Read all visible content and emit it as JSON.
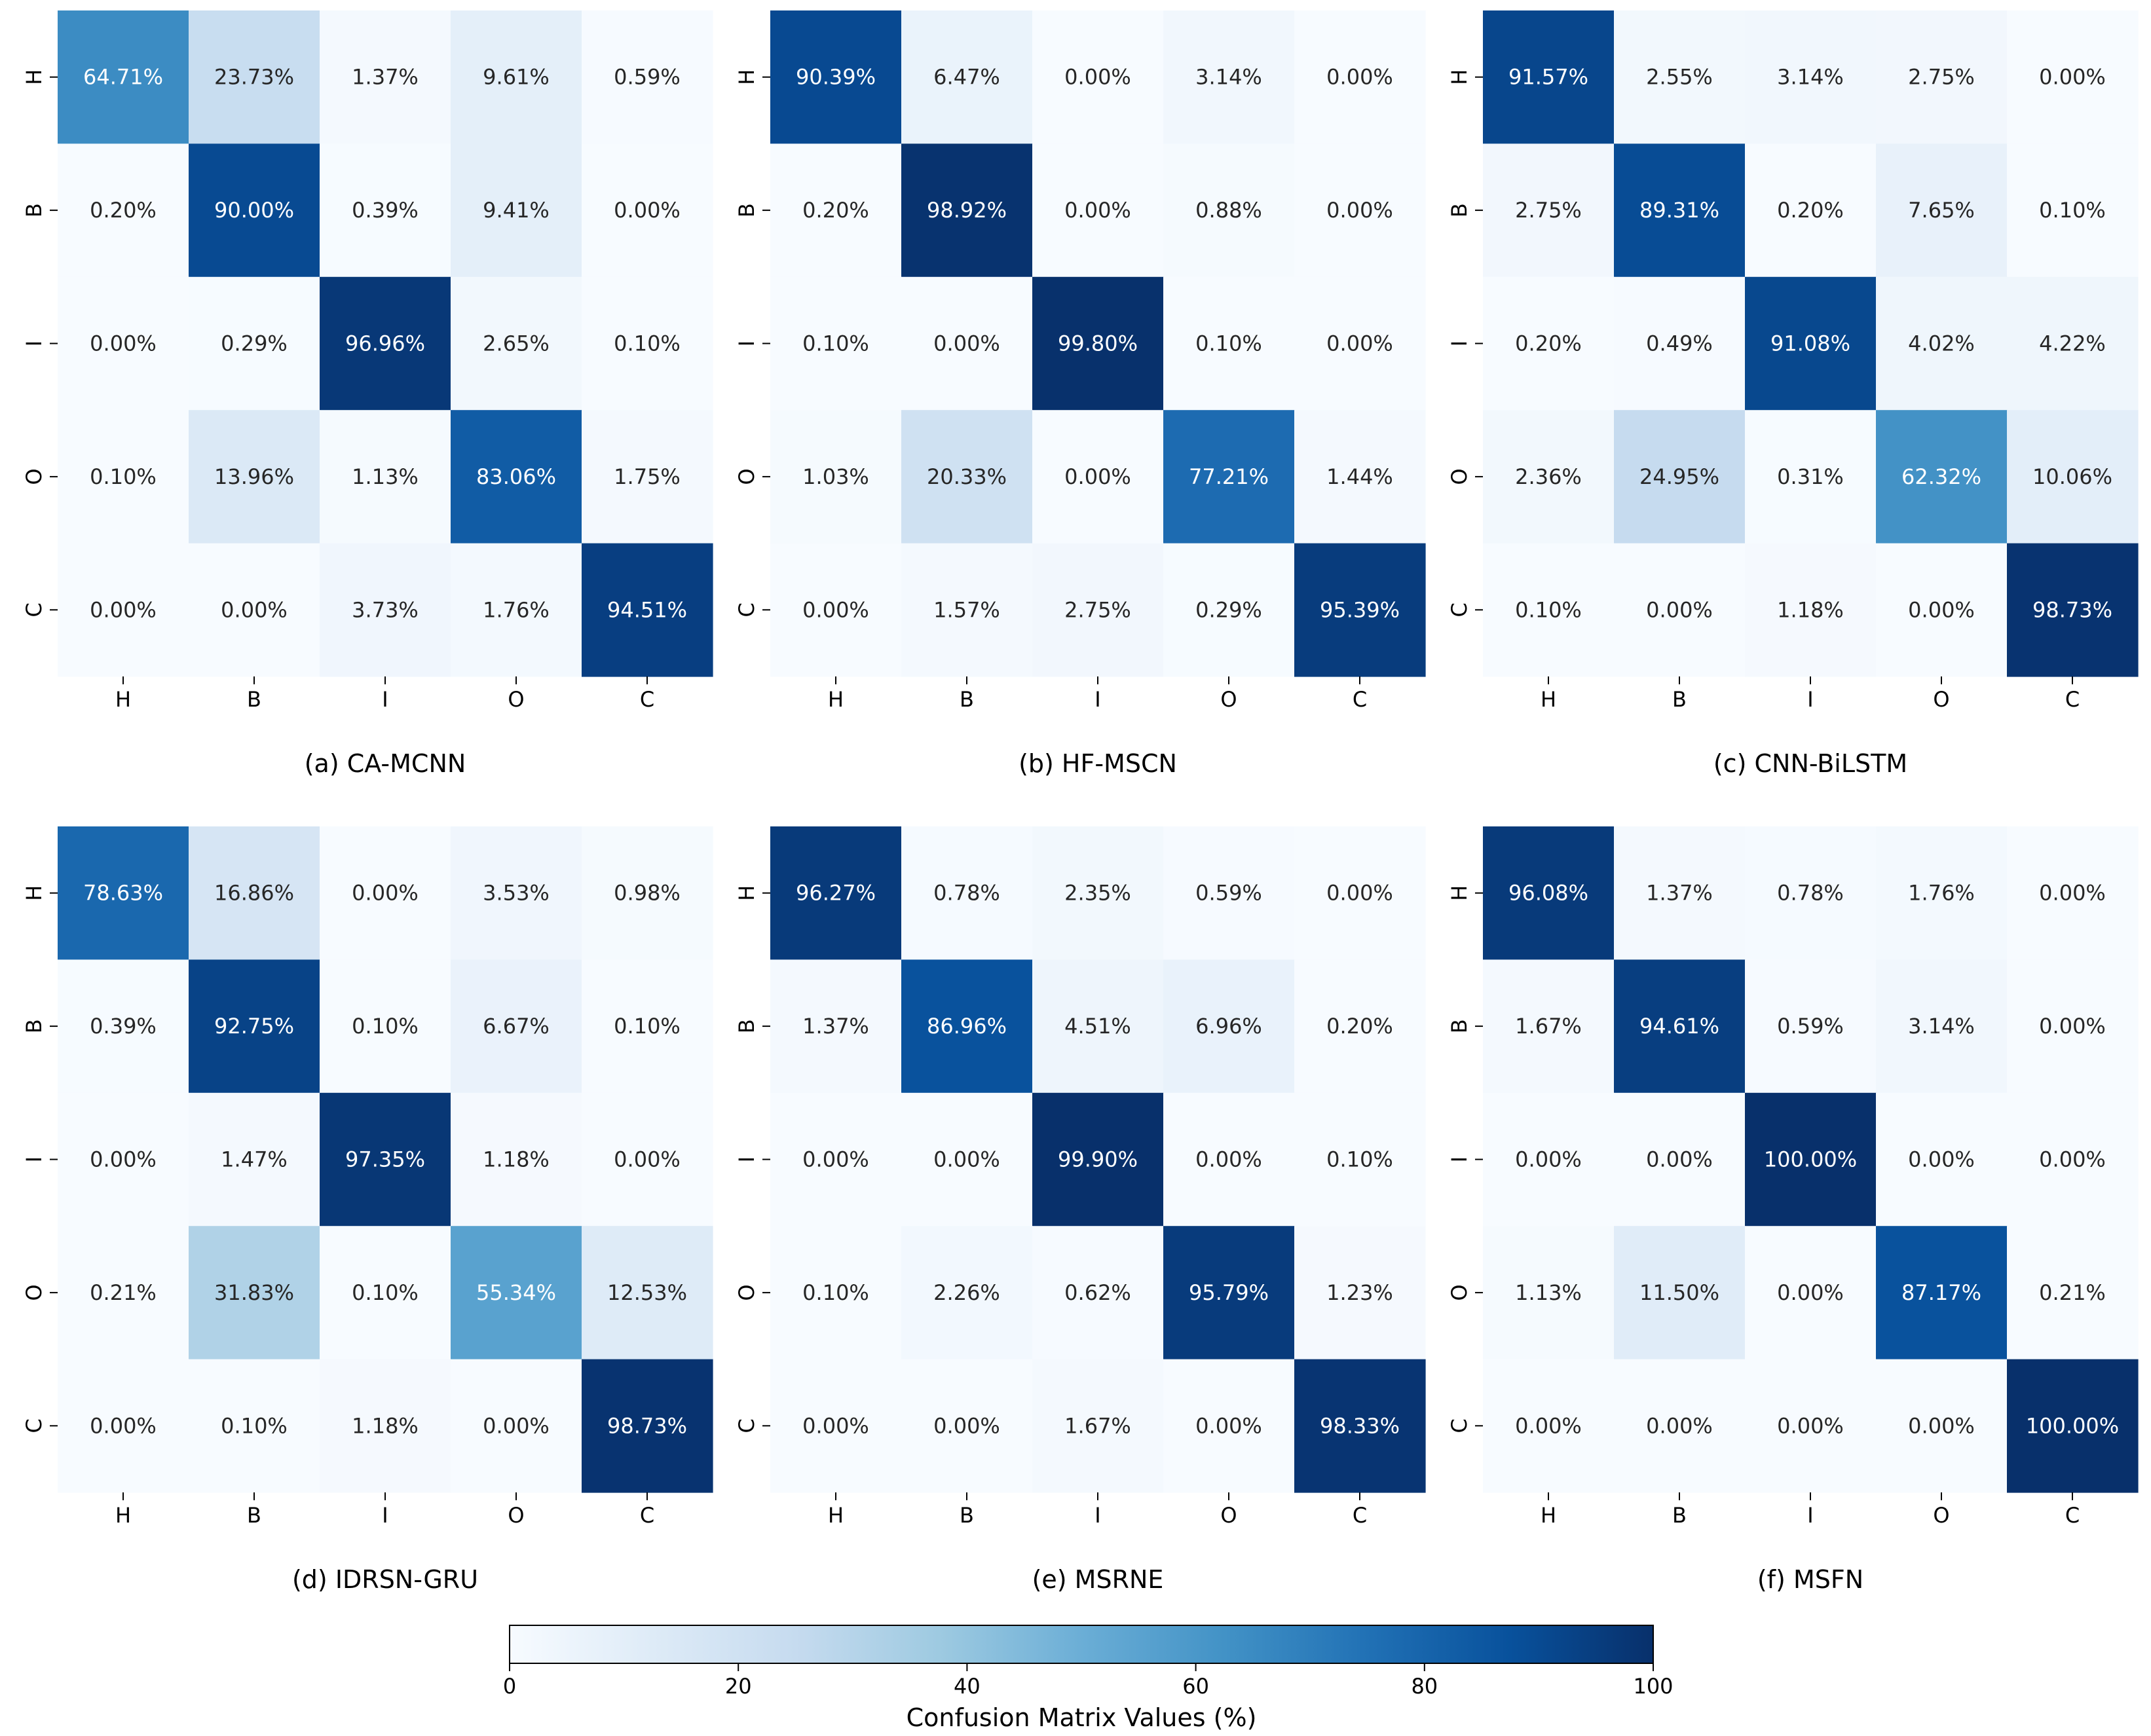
{
  "chart_data": [
    {
      "type": "heatmap",
      "caption": "(a) CA-MCNN",
      "row_labels": [
        "H",
        "B",
        "I",
        "O",
        "C"
      ],
      "col_labels": [
        "H",
        "B",
        "I",
        "O",
        "C"
      ],
      "values": [
        [
          64.71,
          23.73,
          1.37,
          9.61,
          0.59
        ],
        [
          0.2,
          90.0,
          0.39,
          9.41,
          0.0
        ],
        [
          0.0,
          0.29,
          96.96,
          2.65,
          0.1
        ],
        [
          0.1,
          13.96,
          1.13,
          83.06,
          1.75
        ],
        [
          0.0,
          0.0,
          3.73,
          1.76,
          94.51
        ]
      ],
      "cell_labels": [
        [
          "64.71%",
          "23.73%",
          "1.37%",
          "9.61%",
          "0.59%"
        ],
        [
          "0.20%",
          "90.00%",
          "0.39%",
          "9.41%",
          "0.00%"
        ],
        [
          "0.00%",
          "0.29%",
          "96.96%",
          "2.65%",
          "0.10%"
        ],
        [
          "0.10%",
          "13.96%",
          "1.13%",
          "83.06%",
          "1.75%"
        ],
        [
          "0.00%",
          "0.00%",
          "3.73%",
          "1.76%",
          "94.51%"
        ]
      ]
    },
    {
      "type": "heatmap",
      "caption": "(b) HF-MSCN",
      "row_labels": [
        "H",
        "B",
        "I",
        "O",
        "C"
      ],
      "col_labels": [
        "H",
        "B",
        "I",
        "O",
        "C"
      ],
      "values": [
        [
          90.39,
          6.47,
          0.0,
          3.14,
          0.0
        ],
        [
          0.2,
          98.92,
          0.0,
          0.88,
          0.0
        ],
        [
          0.1,
          0.0,
          99.8,
          0.1,
          0.0
        ],
        [
          1.03,
          20.33,
          0.0,
          77.21,
          1.44
        ],
        [
          0.0,
          1.57,
          2.75,
          0.29,
          95.39
        ]
      ],
      "cell_labels": [
        [
          "90.39%",
          "6.47%",
          "0.00%",
          "3.14%",
          "0.00%"
        ],
        [
          "0.20%",
          "98.92%",
          "0.00%",
          "0.88%",
          "0.00%"
        ],
        [
          "0.10%",
          "0.00%",
          "99.80%",
          "0.10%",
          "0.00%"
        ],
        [
          "1.03%",
          "20.33%",
          "0.00%",
          "77.21%",
          "1.44%"
        ],
        [
          "0.00%",
          "1.57%",
          "2.75%",
          "0.29%",
          "95.39%"
        ]
      ]
    },
    {
      "type": "heatmap",
      "caption": "(c) CNN-BiLSTM",
      "row_labels": [
        "H",
        "B",
        "I",
        "O",
        "C"
      ],
      "col_labels": [
        "H",
        "B",
        "I",
        "O",
        "C"
      ],
      "values": [
        [
          91.57,
          2.55,
          3.14,
          2.75,
          0.0
        ],
        [
          2.75,
          89.31,
          0.2,
          7.65,
          0.1
        ],
        [
          0.2,
          0.49,
          91.08,
          4.02,
          4.22
        ],
        [
          2.36,
          24.95,
          0.31,
          62.32,
          10.06
        ],
        [
          0.1,
          0.0,
          1.18,
          0.0,
          98.73
        ]
      ],
      "cell_labels": [
        [
          "91.57%",
          "2.55%",
          "3.14%",
          "2.75%",
          "0.00%"
        ],
        [
          "2.75%",
          "89.31%",
          "0.20%",
          "7.65%",
          "0.10%"
        ],
        [
          "0.20%",
          "0.49%",
          "91.08%",
          "4.02%",
          "4.22%"
        ],
        [
          "2.36%",
          "24.95%",
          "0.31%",
          "62.32%",
          "10.06%"
        ],
        [
          "0.10%",
          "0.00%",
          "1.18%",
          "0.00%",
          "98.73%"
        ]
      ]
    },
    {
      "type": "heatmap",
      "caption": "(d) IDRSN-GRU",
      "row_labels": [
        "H",
        "B",
        "I",
        "O",
        "C"
      ],
      "col_labels": [
        "H",
        "B",
        "I",
        "O",
        "C"
      ],
      "values": [
        [
          78.63,
          16.86,
          0.0,
          3.53,
          0.98
        ],
        [
          0.39,
          92.75,
          0.1,
          6.67,
          0.1
        ],
        [
          0.0,
          1.47,
          97.35,
          1.18,
          0.0
        ],
        [
          0.21,
          31.83,
          0.1,
          55.34,
          12.53
        ],
        [
          0.0,
          0.1,
          1.18,
          0.0,
          98.73
        ]
      ],
      "cell_labels": [
        [
          "78.63%",
          "16.86%",
          "0.00%",
          "3.53%",
          "0.98%"
        ],
        [
          "0.39%",
          "92.75%",
          "0.10%",
          "6.67%",
          "0.10%"
        ],
        [
          "0.00%",
          "1.47%",
          "97.35%",
          "1.18%",
          "0.00%"
        ],
        [
          "0.21%",
          "31.83%",
          "0.10%",
          "55.34%",
          "12.53%"
        ],
        [
          "0.00%",
          "0.10%",
          "1.18%",
          "0.00%",
          "98.73%"
        ]
      ]
    },
    {
      "type": "heatmap",
      "caption": "(e) MSRNE",
      "row_labels": [
        "H",
        "B",
        "I",
        "O",
        "C"
      ],
      "col_labels": [
        "H",
        "B",
        "I",
        "O",
        "C"
      ],
      "values": [
        [
          96.27,
          0.78,
          2.35,
          0.59,
          0.0
        ],
        [
          1.37,
          86.96,
          4.51,
          6.96,
          0.2
        ],
        [
          0.0,
          0.0,
          99.9,
          0.0,
          0.1
        ],
        [
          0.1,
          2.26,
          0.62,
          95.79,
          1.23
        ],
        [
          0.0,
          0.0,
          1.67,
          0.0,
          98.33
        ]
      ],
      "cell_labels": [
        [
          "96.27%",
          "0.78%",
          "2.35%",
          "0.59%",
          "0.00%"
        ],
        [
          "1.37%",
          "86.96%",
          "4.51%",
          "6.96%",
          "0.20%"
        ],
        [
          "0.00%",
          "0.00%",
          "99.90%",
          "0.00%",
          "0.10%"
        ],
        [
          "0.10%",
          "2.26%",
          "0.62%",
          "95.79%",
          "1.23%"
        ],
        [
          "0.00%",
          "0.00%",
          "1.67%",
          "0.00%",
          "98.33%"
        ]
      ]
    },
    {
      "type": "heatmap",
      "caption": "(f) MSFN",
      "row_labels": [
        "H",
        "B",
        "I",
        "O",
        "C"
      ],
      "col_labels": [
        "H",
        "B",
        "I",
        "O",
        "C"
      ],
      "values": [
        [
          96.08,
          1.37,
          0.78,
          1.76,
          0.0
        ],
        [
          1.67,
          94.61,
          0.59,
          3.14,
          0.0
        ],
        [
          0.0,
          0.0,
          100.0,
          0.0,
          0.0
        ],
        [
          1.13,
          11.5,
          0.0,
          87.17,
          0.21
        ],
        [
          0.0,
          0.0,
          0.0,
          0.0,
          100.0
        ]
      ],
      "cell_labels": [
        [
          "96.08%",
          "1.37%",
          "0.78%",
          "1.76%",
          "0.00%"
        ],
        [
          "1.67%",
          "94.61%",
          "0.59%",
          "3.14%",
          "0.00%"
        ],
        [
          "0.00%",
          "0.00%",
          "100.00%",
          "0.00%",
          "0.00%"
        ],
        [
          "1.13%",
          "11.50%",
          "0.00%",
          "87.17%",
          "0.21%"
        ],
        [
          "0.00%",
          "0.00%",
          "0.00%",
          "0.00%",
          "100.00%"
        ]
      ]
    }
  ],
  "colorbar": {
    "label": "Confusion Matrix Values (%)",
    "range": [
      0,
      100
    ],
    "ticks": [
      0,
      20,
      40,
      60,
      80,
      100
    ],
    "tick_labels": [
      "0",
      "20",
      "40",
      "60",
      "80",
      "100"
    ],
    "colormap": "Blues",
    "stops": [
      "#f7fbff",
      "#deebf7",
      "#c6dbef",
      "#9ecae1",
      "#6baed6",
      "#4292c6",
      "#2171b5",
      "#08519c",
      "#08306b"
    ]
  }
}
